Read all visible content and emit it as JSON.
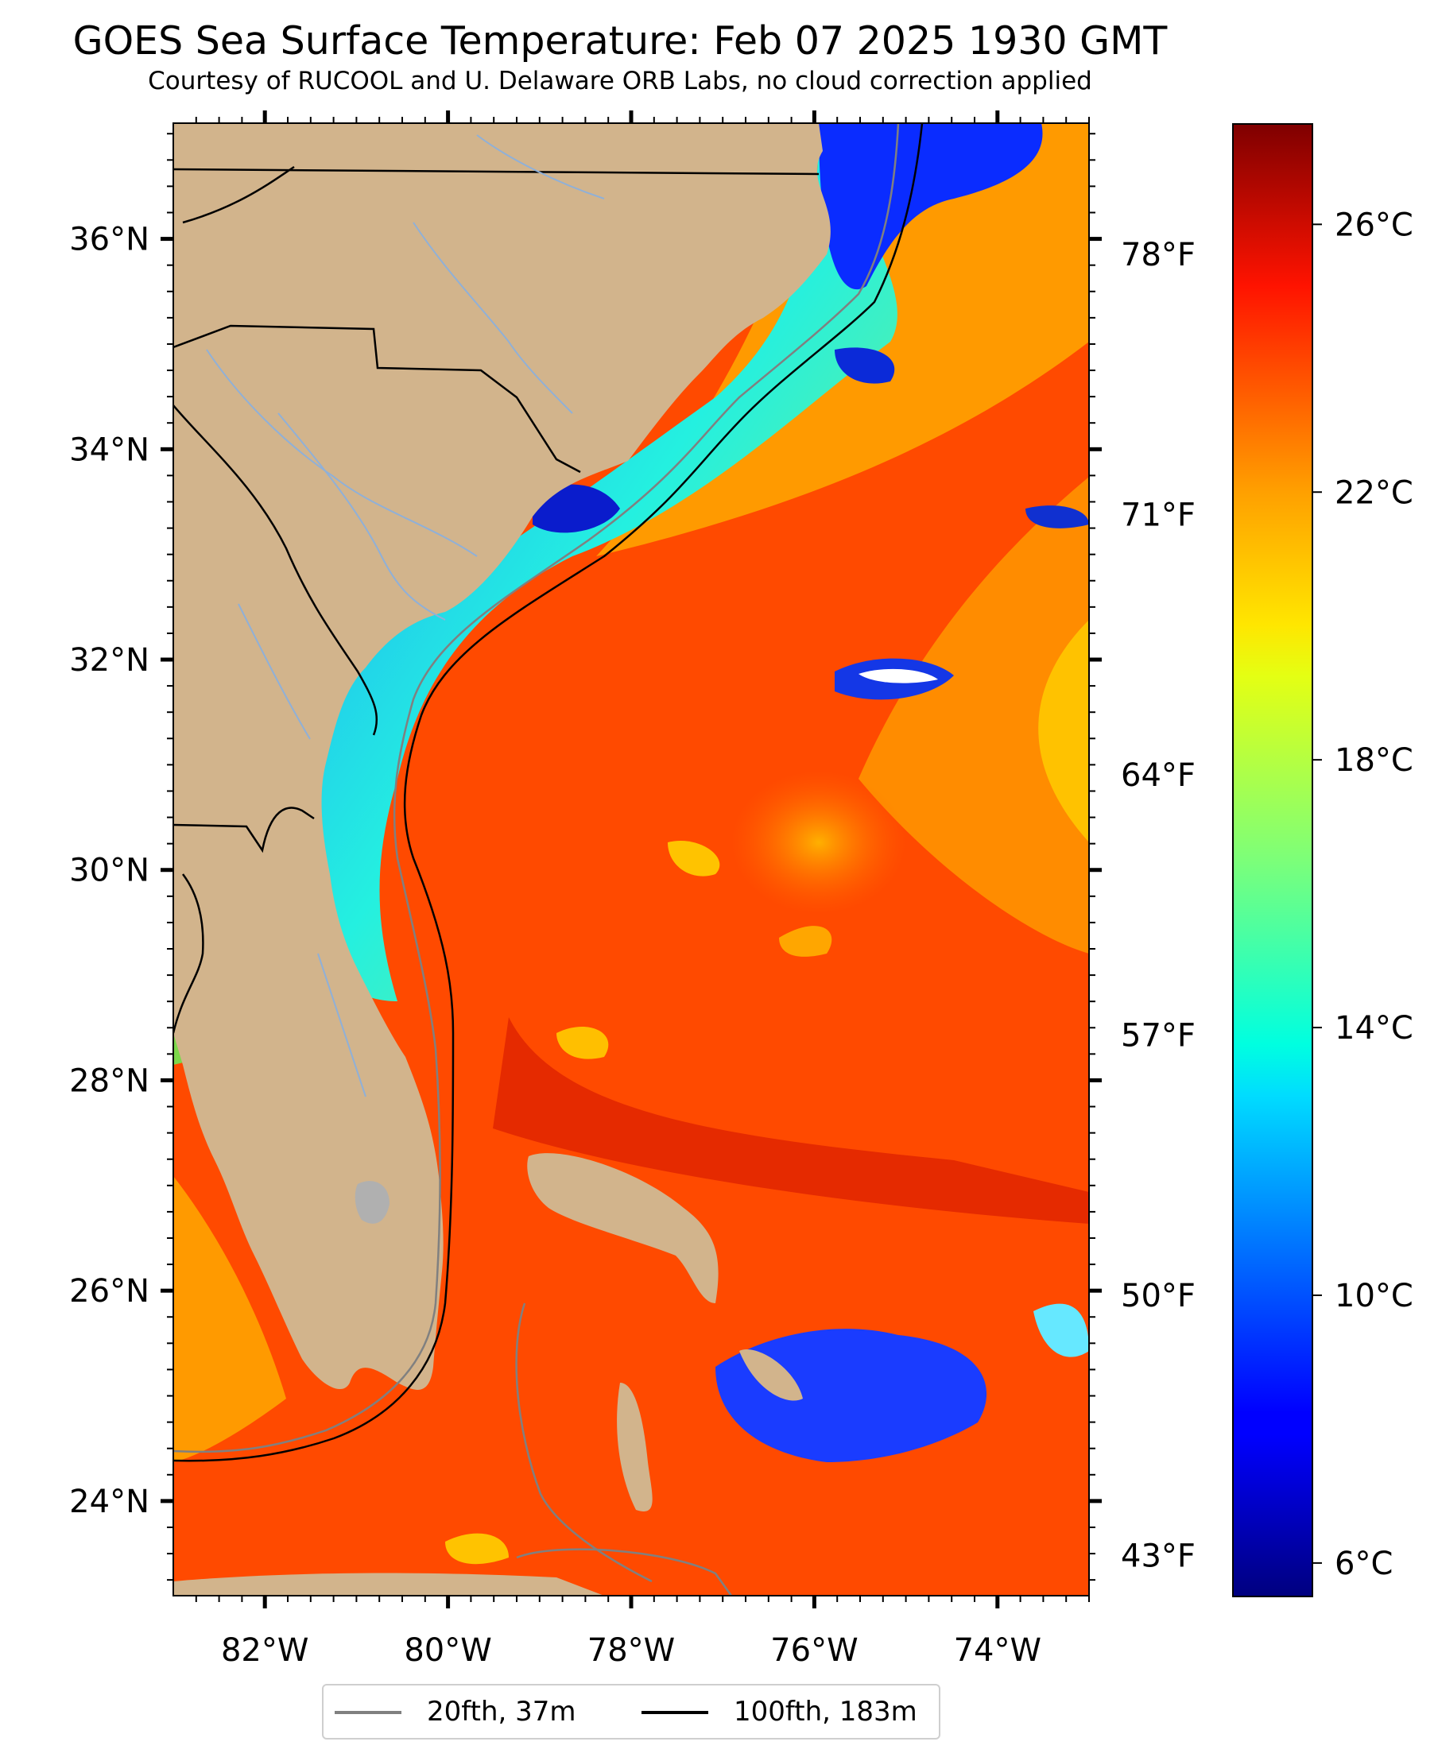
{
  "title": "GOES Sea Surface Temperature: Feb 07 2025 1930 GMT",
  "subtitle": "Courtesy of RUCOOL and U. Delaware ORB Labs, no cloud correction applied",
  "map": {
    "lon_range": [
      -83.0,
      -73.0
    ],
    "lat_range": [
      23.1,
      37.1
    ],
    "lon_ticks": [
      {
        "value": -82,
        "label": "82°W"
      },
      {
        "value": -80,
        "label": "80°W"
      },
      {
        "value": -78,
        "label": "78°W"
      },
      {
        "value": -76,
        "label": "76°W"
      },
      {
        "value": -74,
        "label": "74°W"
      }
    ],
    "lat_ticks": [
      {
        "value": 36,
        "label": "36°N"
      },
      {
        "value": 34,
        "label": "34°N"
      },
      {
        "value": 32,
        "label": "32°N"
      },
      {
        "value": 30,
        "label": "30°N"
      },
      {
        "value": 28,
        "label": "28°N"
      },
      {
        "value": 26,
        "label": "26°N"
      },
      {
        "value": 24,
        "label": "24°N"
      }
    ],
    "colors": {
      "land": "#d2b48c",
      "state_border": "#000000",
      "river": "#8fb0d8",
      "isobath_20fth": "#808080",
      "isobath_100fth": "#000000"
    }
  },
  "colorbar": {
    "min_c": 5.5,
    "max_c": 27.5,
    "colormap": "jet",
    "celsius_ticks": [
      {
        "value": 26,
        "label": "26°C"
      },
      {
        "value": 22,
        "label": "22°C"
      },
      {
        "value": 18,
        "label": "18°C"
      },
      {
        "value": 14,
        "label": "14°C"
      },
      {
        "value": 10,
        "label": "10°C"
      },
      {
        "value": 6,
        "label": "6°C"
      }
    ],
    "fahrenheit_ticks": [
      {
        "value": 78,
        "label": "78°F"
      },
      {
        "value": 71,
        "label": "71°F"
      },
      {
        "value": 64,
        "label": "64°F"
      },
      {
        "value": 57,
        "label": "57°F"
      },
      {
        "value": 50,
        "label": "50°F"
      },
      {
        "value": 43,
        "label": "43°F"
      }
    ]
  },
  "legend": {
    "items": [
      {
        "label": "20fth, 37m",
        "color": "#808080"
      },
      {
        "label": "100fth, 183m",
        "color": "#000000"
      }
    ]
  }
}
